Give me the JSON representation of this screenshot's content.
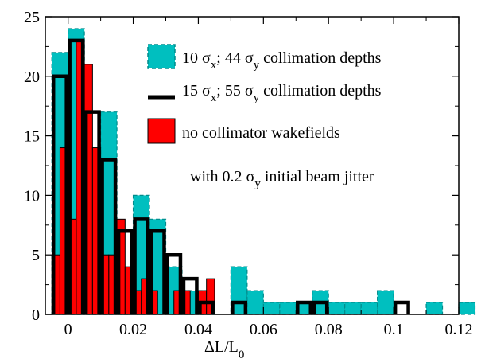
{
  "chart_data": {
    "type": "bar",
    "title": "",
    "xlabel_main": "ΔL/L",
    "xlabel_sub": "0",
    "ylabel": "",
    "xlim": [
      -0.007,
      0.12
    ],
    "ylim": [
      0,
      25
    ],
    "x_ticks": [
      "0",
      "0.02",
      "0.04",
      "0.06",
      "0.08",
      "0.1",
      "0.12"
    ],
    "x_tick_values": [
      0,
      0.02,
      0.04,
      0.06,
      0.08,
      0.1,
      0.12
    ],
    "y_ticks": [
      "0",
      "5",
      "10",
      "15",
      "20",
      "25"
    ],
    "y_tick_values": [
      0,
      5,
      10,
      15,
      20,
      25
    ],
    "grid": false,
    "legend_position": "top-right",
    "series": [
      {
        "name_parts": [
          "10 σ",
          "x",
          "; 44 σ",
          "y",
          " collimation depths"
        ],
        "style": "filled-dashed",
        "color": "#00bfbf",
        "edge_color": "#008b8b",
        "bin_start": -0.005,
        "bin_width": 0.005,
        "values": [
          22,
          24,
          2,
          17,
          3,
          10,
          8,
          4,
          2,
          2,
          0,
          4,
          2,
          1,
          1,
          1,
          2,
          1,
          1,
          1,
          2,
          0,
          0,
          1,
          0,
          1
        ]
      },
      {
        "name_parts": [
          "15 σ",
          "x",
          "; 55 σ",
          "y",
          " collimation depths"
        ],
        "style": "outline",
        "color": "#000000",
        "bin_start": -0.005,
        "bin_width": 0.005,
        "values": [
          20,
          23,
          17,
          13,
          7,
          8,
          7,
          5,
          3,
          1,
          0,
          1,
          0,
          0,
          0,
          1,
          1,
          0,
          0,
          0,
          0,
          1
        ]
      },
      {
        "name": "no collimator wakefields",
        "style": "filled",
        "color": "#ff0000",
        "edge_color": "#000000",
        "bin_start": -0.005,
        "bin_width": 0.0025,
        "values": [
          5,
          14,
          8,
          23,
          21,
          14,
          5,
          5,
          8,
          4,
          2,
          3,
          2,
          0,
          0,
          2,
          2,
          0,
          2,
          3
        ]
      }
    ],
    "annotation_parts": [
      "with 0.2 σ",
      "y",
      " initial beam jitter"
    ]
  }
}
